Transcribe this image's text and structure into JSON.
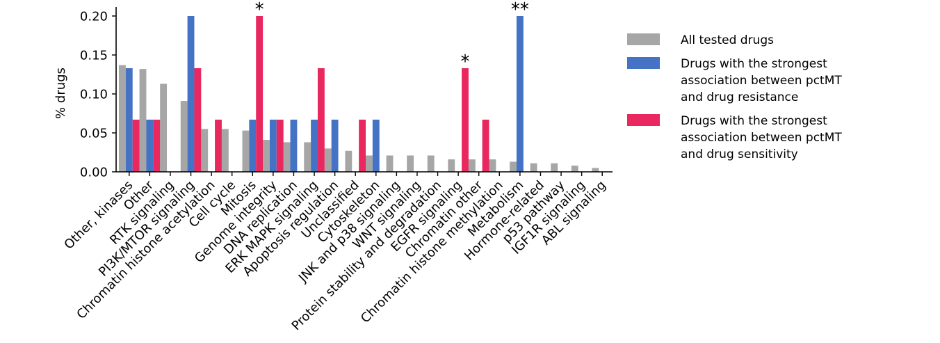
{
  "chart_data": {
    "type": "bar",
    "ylabel": "% drugs",
    "xlabel": "",
    "ylim": [
      0,
      0.21
    ],
    "yticks": [
      "0.00",
      "0.05",
      "0.10",
      "0.15",
      "0.20"
    ],
    "ytick_values": [
      0,
      0.05,
      0.1,
      0.15,
      0.2
    ],
    "categories": [
      "Other, kinases",
      "Other",
      "RTK signaling",
      "PI3K/MTOR signaling",
      "Chromatin histone acetylation",
      "Cell cycle",
      "Mitosis",
      "Genome integrity",
      "DNA replication",
      "ERK MAPK signaling",
      "Apoptosis regulation",
      "Unclassified",
      "Cytoskeleton",
      "JNK and p38 signaling",
      "WNT signaling",
      "Protein stability and degradation",
      "EGFR signaling",
      "Chromatin other",
      "Chromatin histone methylation",
      "Metabolism",
      "Hormone-related",
      "p53 pathway",
      "IGF1R signaling",
      "ABL signaling"
    ],
    "series": [
      {
        "name": "All tested drugs",
        "color": "#a6a6a6",
        "values": [
          0.137,
          0.132,
          0.113,
          0.091,
          0.055,
          0.055,
          0.053,
          0.041,
          0.038,
          0.038,
          0.03,
          0.027,
          0.021,
          0.021,
          0.021,
          0.021,
          0.016,
          0.016,
          0.016,
          0.013,
          0.011,
          0.011,
          0.008,
          0.005
        ]
      },
      {
        "name": "Drugs with the strongest association between pctMT and drug resistance",
        "color": "#4472c4",
        "values": [
          0.133,
          0.067,
          0,
          0.2,
          0,
          0,
          0.067,
          0.067,
          0.067,
          0.067,
          0.067,
          0,
          0.067,
          0,
          0,
          0,
          0,
          0,
          0,
          0.2,
          0,
          0,
          0,
          0
        ]
      },
      {
        "name": "Drugs with the strongest association between pctMT and drug sensitivity",
        "color": "#e8285f",
        "values": [
          0.067,
          0.067,
          0,
          0.133,
          0.067,
          0,
          0.2,
          0.067,
          0,
          0.133,
          0,
          0.067,
          0,
          0,
          0,
          0,
          0.133,
          0.067,
          0,
          0,
          0,
          0,
          0,
          0
        ]
      }
    ],
    "annotations": [
      {
        "text": "*",
        "category_index": 6,
        "series_index": 2
      },
      {
        "text": "*",
        "category_index": 16,
        "series_index": 2
      },
      {
        "text": "**",
        "category_index": 19,
        "series_index": 1
      }
    ],
    "legend": {
      "placement": "right",
      "lines": [
        [
          "All tested drugs"
        ],
        [
          "Drugs with the strongest",
          "association between pctMT",
          "and drug resistance"
        ],
        [
          "Drugs with the strongest",
          "association between pctMT",
          "and drug sensitivity"
        ]
      ]
    },
    "grid": false
  }
}
